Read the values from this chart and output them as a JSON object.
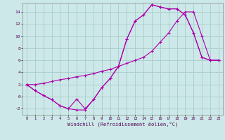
{
  "xlabel": "Windchill (Refroidissement éolien,°C)",
  "background_color": "#cce8e8",
  "grid_color": "#aacccc",
  "line_color": "#aa00aa",
  "xlim": [
    -0.5,
    23.5
  ],
  "ylim": [
    -3,
    15.5
  ],
  "xticks": [
    0,
    1,
    2,
    3,
    4,
    5,
    6,
    7,
    8,
    9,
    10,
    11,
    12,
    13,
    14,
    15,
    16,
    17,
    18,
    19,
    20,
    21,
    22,
    23
  ],
  "yticks": [
    -2,
    0,
    2,
    4,
    6,
    8,
    10,
    12,
    14
  ],
  "line1_x": [
    0,
    1,
    2,
    3,
    4,
    5,
    6,
    7,
    8,
    9,
    10,
    11,
    12,
    13,
    14,
    15,
    16,
    17,
    18,
    19,
    20,
    21,
    22,
    23
  ],
  "line1_y": [
    2,
    1,
    0.2,
    -0.5,
    -1.5,
    -2.0,
    -2.2,
    -2.2,
    -0.5,
    1.5,
    3.0,
    5.0,
    9.5,
    12.5,
    13.5,
    15.2,
    14.8,
    14.5,
    14.5,
    13.5,
    10.5,
    6.5,
    6.0,
    6.0
  ],
  "line2_x": [
    0,
    1,
    2,
    3,
    4,
    5,
    6,
    7,
    8,
    9,
    10,
    11,
    12,
    13,
    14,
    15,
    16,
    17,
    18,
    19,
    20,
    21,
    22,
    23
  ],
  "line2_y": [
    2,
    2,
    2.2,
    2.5,
    2.8,
    3.0,
    3.3,
    3.5,
    3.8,
    4.2,
    4.5,
    5.0,
    5.5,
    6.0,
    6.5,
    7.5,
    9.0,
    10.5,
    12.5,
    14.0,
    14.0,
    10.0,
    6.0,
    6.0
  ],
  "line3_x": [
    0,
    1,
    2,
    3,
    4,
    5,
    6,
    7,
    8,
    9,
    10,
    11,
    12,
    13,
    14,
    15,
    16,
    17,
    18,
    19,
    20,
    21,
    22,
    23
  ],
  "line3_y": [
    2,
    1.0,
    0.2,
    -0.5,
    -1.5,
    -2.0,
    -0.4,
    -2.0,
    -0.5,
    1.5,
    3.0,
    5.0,
    9.5,
    12.5,
    13.5,
    15.2,
    14.8,
    14.5,
    14.5,
    13.5,
    10.5,
    6.5,
    6.0,
    6.0
  ],
  "marker": "+"
}
